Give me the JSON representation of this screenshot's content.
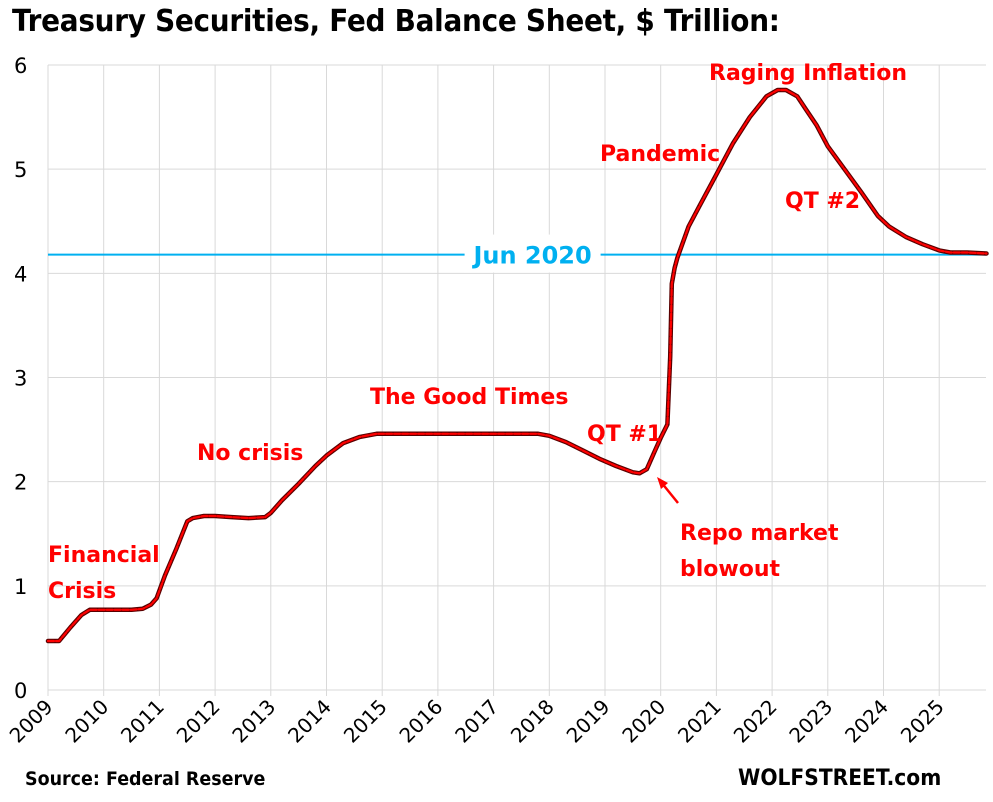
{
  "chart_data": {
    "type": "line",
    "title": "Treasury Securities, Fed Balance Sheet, $ Trillion:",
    "xlabel": "",
    "ylabel": "",
    "xlim": [
      2009,
      2025.85
    ],
    "ylim": [
      0,
      6
    ],
    "grid": true,
    "y_ticks": [
      "0",
      "1",
      "2",
      "3",
      "4",
      "5",
      "6"
    ],
    "x_ticks": [
      "2009",
      "2010",
      "2011",
      "2012",
      "2013",
      "2014",
      "2015",
      "2016",
      "2017",
      "2018",
      "2019",
      "2020",
      "2021",
      "2022",
      "2023",
      "2024",
      "2025"
    ],
    "series": [
      {
        "name": "Treasury Securities",
        "color": "#ff0000",
        "x": [
          2009.0,
          2009.2,
          2009.4,
          2009.6,
          2009.75,
          2009.9,
          2010.2,
          2010.5,
          2010.7,
          2010.85,
          2010.95,
          2011.1,
          2011.3,
          2011.5,
          2011.6,
          2011.8,
          2012.0,
          2012.3,
          2012.6,
          2012.9,
          2013.0,
          2013.2,
          2013.5,
          2013.8,
          2014.0,
          2014.3,
          2014.6,
          2014.9,
          2015.2,
          2015.5,
          2016.0,
          2016.5,
          2017.0,
          2017.5,
          2017.8,
          2018.0,
          2018.3,
          2018.6,
          2018.9,
          2019.2,
          2019.5,
          2019.62,
          2019.75,
          2019.9,
          2020.0,
          2020.12,
          2020.17,
          2020.2,
          2020.25,
          2020.3,
          2020.4,
          2020.5,
          2020.7,
          2021.0,
          2021.3,
          2021.6,
          2021.9,
          2022.1,
          2022.25,
          2022.45,
          2022.6,
          2022.8,
          2023.0,
          2023.3,
          2023.6,
          2023.9,
          2024.1,
          2024.4,
          2024.7,
          2025.0,
          2025.2,
          2025.5,
          2025.85
        ],
        "values": [
          0.47,
          0.47,
          0.6,
          0.72,
          0.77,
          0.77,
          0.77,
          0.77,
          0.78,
          0.82,
          0.88,
          1.1,
          1.35,
          1.62,
          1.65,
          1.67,
          1.67,
          1.66,
          1.65,
          1.66,
          1.7,
          1.82,
          1.98,
          2.15,
          2.25,
          2.37,
          2.43,
          2.46,
          2.46,
          2.46,
          2.46,
          2.46,
          2.46,
          2.46,
          2.46,
          2.44,
          2.38,
          2.3,
          2.22,
          2.15,
          2.09,
          2.08,
          2.12,
          2.3,
          2.42,
          2.55,
          3.2,
          3.9,
          4.05,
          4.15,
          4.3,
          4.45,
          4.65,
          4.95,
          5.25,
          5.5,
          5.7,
          5.76,
          5.76,
          5.7,
          5.58,
          5.42,
          5.22,
          5.0,
          4.78,
          4.55,
          4.45,
          4.35,
          4.28,
          4.22,
          4.2,
          4.2,
          4.19
        ]
      }
    ],
    "reference_lines": [
      {
        "label": "Jun 2020",
        "value": 4.18,
        "color": "#00b0f0"
      }
    ],
    "annotations": [
      {
        "id": "financial",
        "lines": [
          "Financial",
          "Crisis"
        ]
      },
      {
        "id": "nocrisis",
        "lines": [
          "No crisis"
        ]
      },
      {
        "id": "goodtimes",
        "lines": [
          "The Good Times"
        ]
      },
      {
        "id": "qt1",
        "lines": [
          "QT #1"
        ]
      },
      {
        "id": "repo",
        "lines": [
          "Repo market",
          "blowout"
        ]
      },
      {
        "id": "pandemic",
        "lines": [
          "Pandemic"
        ]
      },
      {
        "id": "raging",
        "lines": [
          "Raging  Inflation"
        ]
      },
      {
        "id": "qt2",
        "lines": [
          "QT #2"
        ]
      }
    ],
    "source": "Source: Federal Reserve",
    "brand": "WOLFSTREET.com"
  }
}
